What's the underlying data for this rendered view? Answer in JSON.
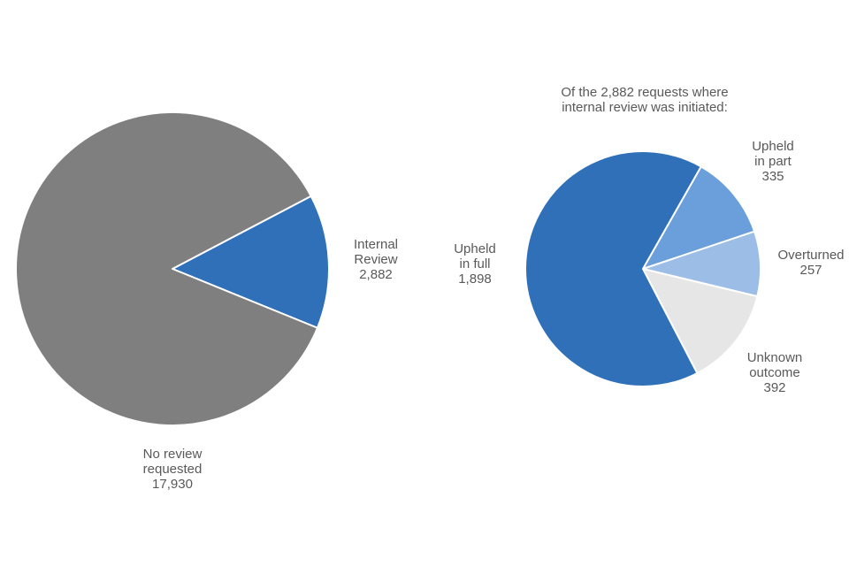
{
  "chart_data": [
    {
      "type": "pie",
      "title": "",
      "slices": [
        {
          "label": [
            "Internal",
            "Review",
            "2,882"
          ],
          "value": 2882,
          "color": "#3070b8"
        },
        {
          "label": [
            "No review",
            "requested",
            "17,930"
          ],
          "value": 17930,
          "color": "#7f7f7f"
        }
      ]
    },
    {
      "type": "pie",
      "title": [
        "Of the 2,882 requests where",
        "internal review was initiated:"
      ],
      "slices": [
        {
          "label": [
            "Upheld",
            "in part",
            "335"
          ],
          "value": 335,
          "color": "#6a9fdb"
        },
        {
          "label": [
            "Overturned",
            "257"
          ],
          "value": 257,
          "color": "#9bbde6"
        },
        {
          "label": [
            "Unknown",
            "outcome",
            "392"
          ],
          "value": 392,
          "color": "#e6e6e6"
        },
        {
          "label": [
            "Upheld",
            "in full",
            "1,898"
          ],
          "value": 1898,
          "color": "#3070b8"
        }
      ]
    }
  ]
}
